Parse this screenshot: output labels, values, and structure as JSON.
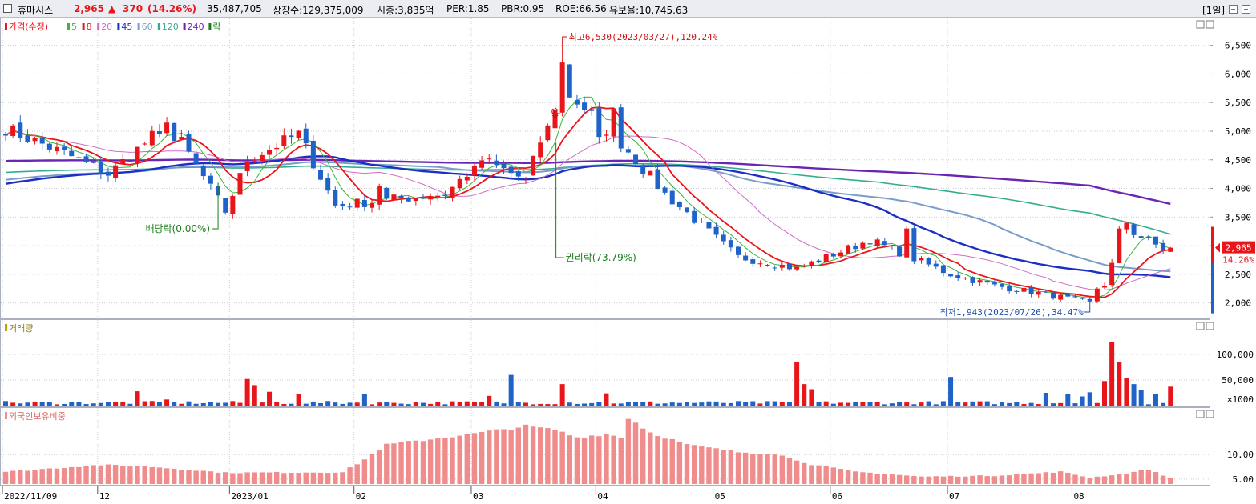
{
  "header": {
    "name": "휴마시스",
    "price": "2,965",
    "change_arrow": "▲",
    "change": "370",
    "change_pct": "(14.26%)",
    "volume": "35,487,705",
    "shares": "상장수:129,375,009",
    "mktcap": "시총:3,835억",
    "per": "PER:1.85",
    "pbr": "PBR:0.95",
    "roe": "ROE:66.56",
    "float": "유보율:10,745.63",
    "period": "[1일]"
  },
  "colors": {
    "up": "#e8161b",
    "down": "#1f63c9",
    "ma5": "#3bb53b",
    "ma8": "#e8161b",
    "ma20": "#cf6cc4",
    "ma45": "#1c2fc4",
    "ma60": "#7b9cc9",
    "ma120": "#34ad8e",
    "ma240": "#6b25b5",
    "foreign": "#f08c8c",
    "grid": "#c9cdd6"
  },
  "chart_data": [
    {
      "type": "candlestick",
      "legend": [
        {
          "label": "가격(수정)",
          "color": "#e8161b"
        },
        {
          "label": "5",
          "color": "#3bb53b"
        },
        {
          "label": "8",
          "color": "#e8161b"
        },
        {
          "label": "20",
          "color": "#cf6cc4"
        },
        {
          "label": "45",
          "color": "#1c2fc4"
        },
        {
          "label": "60",
          "color": "#7b9cc9"
        },
        {
          "label": "120",
          "color": "#34ad8e"
        },
        {
          "label": "240",
          "color": "#6b25b5"
        },
        {
          "label": "락",
          "color": "#1a7d1a"
        }
      ],
      "y_ticks": [
        "6,500",
        "6,000",
        "5,500",
        "5,000",
        "4,500",
        "4,000",
        "3,500",
        "3,000",
        "2,500",
        "2,000"
      ],
      "ylim": [
        1800,
        6900
      ],
      "x_labels": [
        "2022/11/09",
        "12",
        "2023/01",
        "02",
        "03",
        "04",
        "05",
        "06",
        "07",
        "08"
      ],
      "last_price": "2,965",
      "last_pct": "14.26%",
      "annotations": {
        "high": "최고6,530(2023/03/27),120.24%",
        "low": "최저1,943(2023/07/26),34.47%",
        "dividend": "배당락(0.00%)",
        "rights": "권리락(73.79%)",
        "up_mark": "상"
      },
      "close_anchors": [
        [
          0,
          5050
        ],
        [
          10,
          4500
        ],
        [
          14,
          4250
        ],
        [
          20,
          4900
        ],
        [
          24,
          4800
        ],
        [
          30,
          3600
        ],
        [
          33,
          4500
        ],
        [
          40,
          4950
        ],
        [
          45,
          3700
        ],
        [
          52,
          3800
        ],
        [
          60,
          3900
        ],
        [
          65,
          4500
        ],
        [
          71,
          4150
        ],
        [
          76,
          5750
        ],
        [
          84,
          4800
        ],
        [
          90,
          3900
        ],
        [
          100,
          2800
        ],
        [
          108,
          2600
        ],
        [
          118,
          3100
        ],
        [
          129,
          2500
        ],
        [
          135,
          2300
        ],
        [
          142,
          2150
        ],
        [
          148,
          2000
        ],
        [
          153,
          3300
        ],
        [
          158,
          2940
        ],
        [
          159,
          2965
        ]
      ],
      "jumps": [
        [
          22,
          5150
        ],
        [
          51,
          4050
        ],
        [
          64,
          4400
        ],
        [
          73,
          4800
        ],
        [
          74,
          5100
        ],
        [
          76,
          6200
        ],
        [
          81,
          4900
        ],
        [
          83,
          5400
        ],
        [
          123,
          3300
        ],
        [
          150,
          2300
        ],
        [
          151,
          2700
        ],
        [
          152,
          3300
        ],
        [
          153,
          3400
        ],
        [
          159,
          2965
        ]
      ],
      "ma_end_values": {
        "ma5": 2950,
        "ma8": 2930,
        "ma20": 2600,
        "ma45": 2450,
        "ma60": 2550,
        "ma120": 3200,
        "ma240": 3730
      }
    },
    {
      "type": "bar",
      "title": "거래량",
      "y_ticks": [
        "100,000",
        "50,000"
      ],
      "unit": "×1000",
      "ylim": [
        0,
        150000
      ],
      "spikes": [
        [
          18,
          28000
        ],
        [
          22,
          12000
        ],
        [
          33,
          52000
        ],
        [
          34,
          40000
        ],
        [
          36,
          27000
        ],
        [
          40,
          23000
        ],
        [
          49,
          23000
        ],
        [
          66,
          19000
        ],
        [
          69,
          60000
        ],
        [
          76,
          42000
        ],
        [
          82,
          24000
        ],
        [
          108,
          86000
        ],
        [
          109,
          42000
        ],
        [
          110,
          32000
        ],
        [
          129,
          56000
        ],
        [
          142,
          25000
        ],
        [
          145,
          22000
        ],
        [
          147,
          18000
        ],
        [
          148,
          26000
        ],
        [
          150,
          48000
        ],
        [
          151,
          125000
        ],
        [
          152,
          86000
        ],
        [
          153,
          54000
        ],
        [
          154,
          42000
        ],
        [
          155,
          30000
        ],
        [
          157,
          22000
        ],
        [
          159,
          37000
        ]
      ]
    },
    {
      "type": "bar",
      "title": "외국인보유비중",
      "y_ticks": [
        "10.00",
        "5.00"
      ],
      "ylim": [
        4,
        19
      ],
      "anchors": [
        [
          0,
          6.5
        ],
        [
          13,
          7.9
        ],
        [
          20,
          7.5
        ],
        [
          30,
          6.3
        ],
        [
          46,
          6.4
        ],
        [
          49,
          9.0
        ],
        [
          52,
          12.0
        ],
        [
          60,
          13.5
        ],
        [
          65,
          14.5
        ],
        [
          71,
          15.8
        ],
        [
          75,
          15.0
        ],
        [
          78,
          13.5
        ],
        [
          82,
          14.2
        ],
        [
          84,
          13.5
        ],
        [
          85,
          17.5
        ],
        [
          88,
          14.5
        ],
        [
          93,
          12.0
        ],
        [
          100,
          10.5
        ],
        [
          105,
          10.2
        ],
        [
          110,
          8.0
        ],
        [
          116,
          6.5
        ],
        [
          125,
          5.5
        ],
        [
          135,
          5.7
        ],
        [
          144,
          6.5
        ],
        [
          148,
          5.3
        ],
        [
          152,
          6.0
        ],
        [
          156,
          6.9
        ],
        [
          159,
          5.2
        ]
      ]
    }
  ]
}
